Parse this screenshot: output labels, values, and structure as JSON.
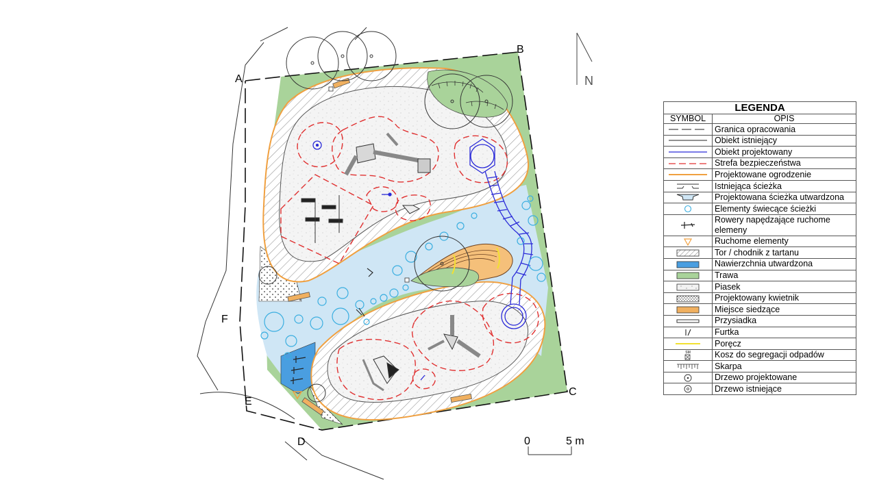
{
  "points": {
    "a": "A",
    "b": "B",
    "c": "C",
    "d": "D",
    "e": "E",
    "f": "F"
  },
  "north": "N",
  "scale": {
    "start": "0",
    "end": "5 m"
  },
  "legend": {
    "title": "LEGENDA",
    "symbol_header": "SYMBOL",
    "desc_header": "OPIS",
    "items": [
      {
        "symbol": "dashed-long-line",
        "label": "Granica opracowania"
      },
      {
        "symbol": "thin-black-line",
        "label": "Obiekt istniejący"
      },
      {
        "symbol": "blue-line",
        "label": "Obiekt projektowany"
      },
      {
        "symbol": "red-dashed-line",
        "label": "Strefa bezpieczeństwa"
      },
      {
        "symbol": "orange-line",
        "label": "Projektowane ogrodzenie"
      },
      {
        "symbol": "existing-path-icon",
        "label": "Istniejąca ścieżka"
      },
      {
        "symbol": "paved-path-icon",
        "label": "Projektowana ścieżka utwardzona"
      },
      {
        "symbol": "light-circle-icon",
        "label": "Elementy świecące ścieżki"
      },
      {
        "symbol": "bike-icon",
        "label": "Rowery napędzające ruchome elemeny"
      },
      {
        "symbol": "triangle-icon",
        "label": "Ruchome elementy"
      },
      {
        "symbol": "hatch-icon",
        "label": "Tor / chodnik z tartanu"
      },
      {
        "symbol": "blue-fill",
        "label": "Nawierzchnia utwardzona"
      },
      {
        "symbol": "green-fill",
        "label": "Trawa"
      },
      {
        "symbol": "sand-fill",
        "label": "Piasek"
      },
      {
        "symbol": "flowerbed-fill",
        "label": "Projektowany kwietnik"
      },
      {
        "symbol": "orange-fill",
        "label": "Miejsce siedzące"
      },
      {
        "symbol": "bench-icon",
        "label": "Przysiadka"
      },
      {
        "symbol": "gate-icon",
        "label": "Furtka"
      },
      {
        "symbol": "yellow-line",
        "label": "Poręcz"
      },
      {
        "symbol": "bin-icon",
        "label": "Kosz do segregacji odpadów",
        "tag": "SM"
      },
      {
        "symbol": "slope-icon",
        "label": "Skarpa"
      },
      {
        "symbol": "planned-tree-icon",
        "label": "Drzewo projektowane"
      },
      {
        "symbol": "existing-tree-icon",
        "label": "Drzewo istniejące"
      }
    ]
  },
  "colors": {
    "grass": "#a9d39a",
    "paved": "#cfe6f5",
    "light_circle": "#3aaee0",
    "fence": "#f0a040",
    "safety": "#e03030",
    "designed": "#2a2ad8",
    "seat": "#f0b060",
    "rail": "#f2e030"
  }
}
